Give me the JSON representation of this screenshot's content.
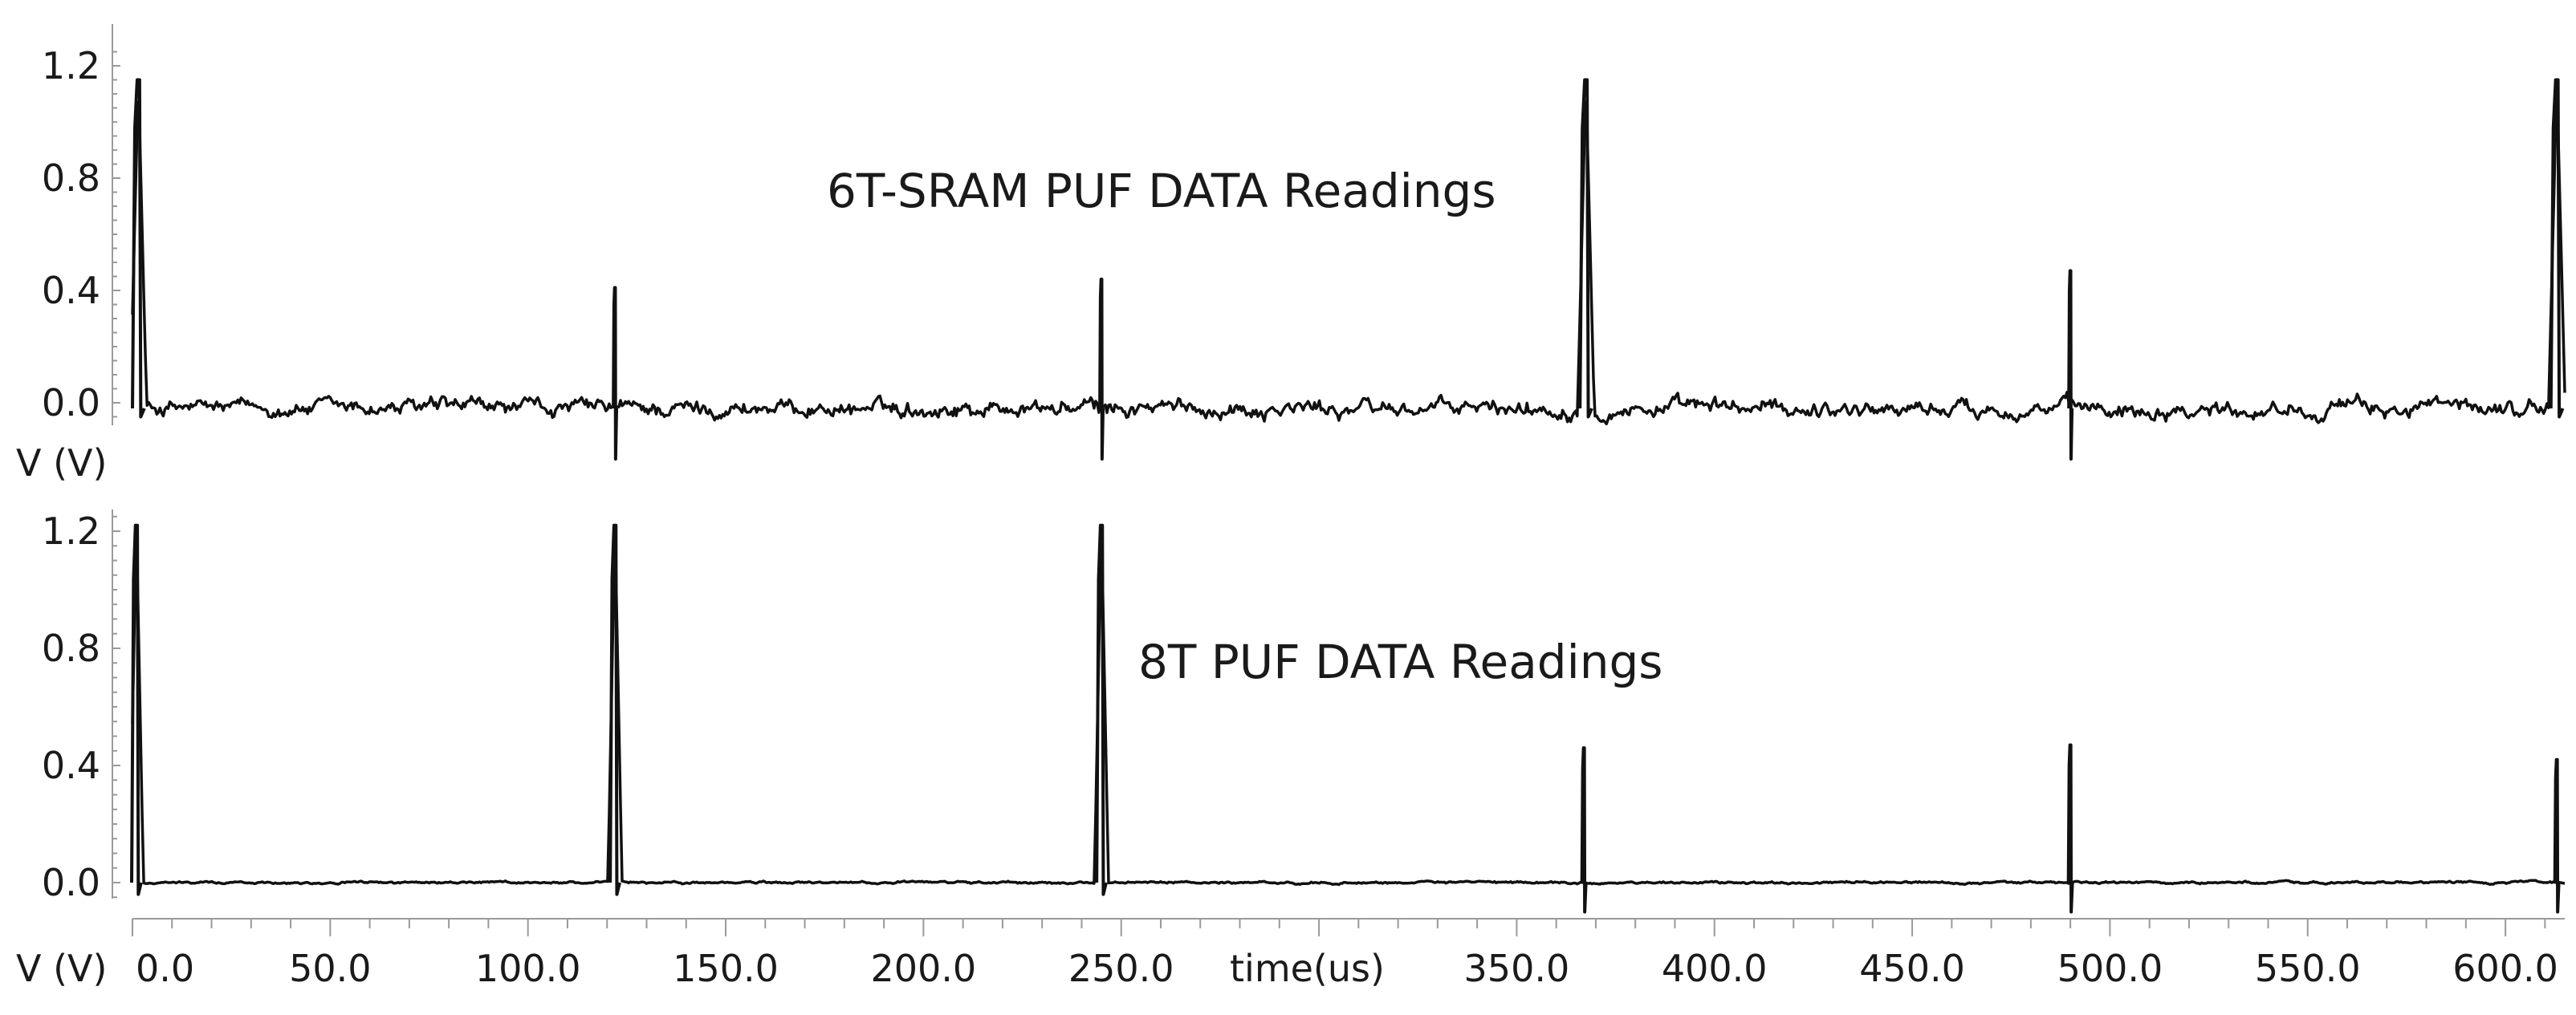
{
  "chart_data": [
    {
      "type": "line",
      "title": "6T-SRAM PUF DATA Readings",
      "ylabel": "V (V)",
      "xlabel": "",
      "ylim": [
        -0.1,
        1.3
      ],
      "xlim": [
        0,
        615
      ],
      "y_ticks": [
        "0.0",
        "0.4",
        "0.8",
        "1.2"
      ],
      "grid": false,
      "baseline": -0.02,
      "noise_amplitude": 0.03,
      "spikes": [
        {
          "x": 1.5,
          "peak": 1.15,
          "min": -0.05,
          "width": 1.5
        },
        {
          "x": 122,
          "peak": 0.41,
          "min": -0.2,
          "width": 0.4
        },
        {
          "x": 245,
          "peak": 0.44,
          "min": -0.2,
          "width": 0.4
        },
        {
          "x": 367.5,
          "peak": 1.15,
          "min": -0.05,
          "width": 1.5
        },
        {
          "x": 490,
          "peak": 0.47,
          "min": -0.2,
          "width": 0.4
        },
        {
          "x": 613,
          "peak": 1.15,
          "min": -0.05,
          "width": 1.5
        }
      ]
    },
    {
      "type": "line",
      "title": "8T PUF DATA Readings",
      "ylabel": "V (V)",
      "xlabel": "time(us)",
      "ylim": [
        -0.1,
        1.3
      ],
      "xlim": [
        0,
        615
      ],
      "y_ticks": [
        "0.0",
        "0.4",
        "0.8",
        "1.2"
      ],
      "x_ticks": [
        "0.0",
        "50.0",
        "100.0",
        "150.0",
        "200.0",
        "250.0",
        "350.0",
        "400.0",
        "450.0",
        "500.0",
        "550.0",
        "600.0"
      ],
      "x_tick_values": [
        0,
        50,
        100,
        150,
        200,
        250,
        350,
        400,
        450,
        500,
        550,
        600
      ],
      "grid": false,
      "baseline": 0.0,
      "noise_amplitude": 0.004,
      "spikes": [
        {
          "x": 1,
          "peak": 1.22,
          "min": -0.04,
          "width": 1.2
        },
        {
          "x": 122,
          "peak": 1.22,
          "min": -0.04,
          "width": 1.2
        },
        {
          "x": 245,
          "peak": 1.22,
          "min": -0.04,
          "width": 1.2
        },
        {
          "x": 367,
          "peak": 0.46,
          "min": -0.1,
          "width": 0.5
        },
        {
          "x": 490,
          "peak": 0.47,
          "min": -0.1,
          "width": 0.5
        },
        {
          "x": 613,
          "peak": 0.42,
          "min": -0.1,
          "width": 0.5
        }
      ]
    }
  ]
}
